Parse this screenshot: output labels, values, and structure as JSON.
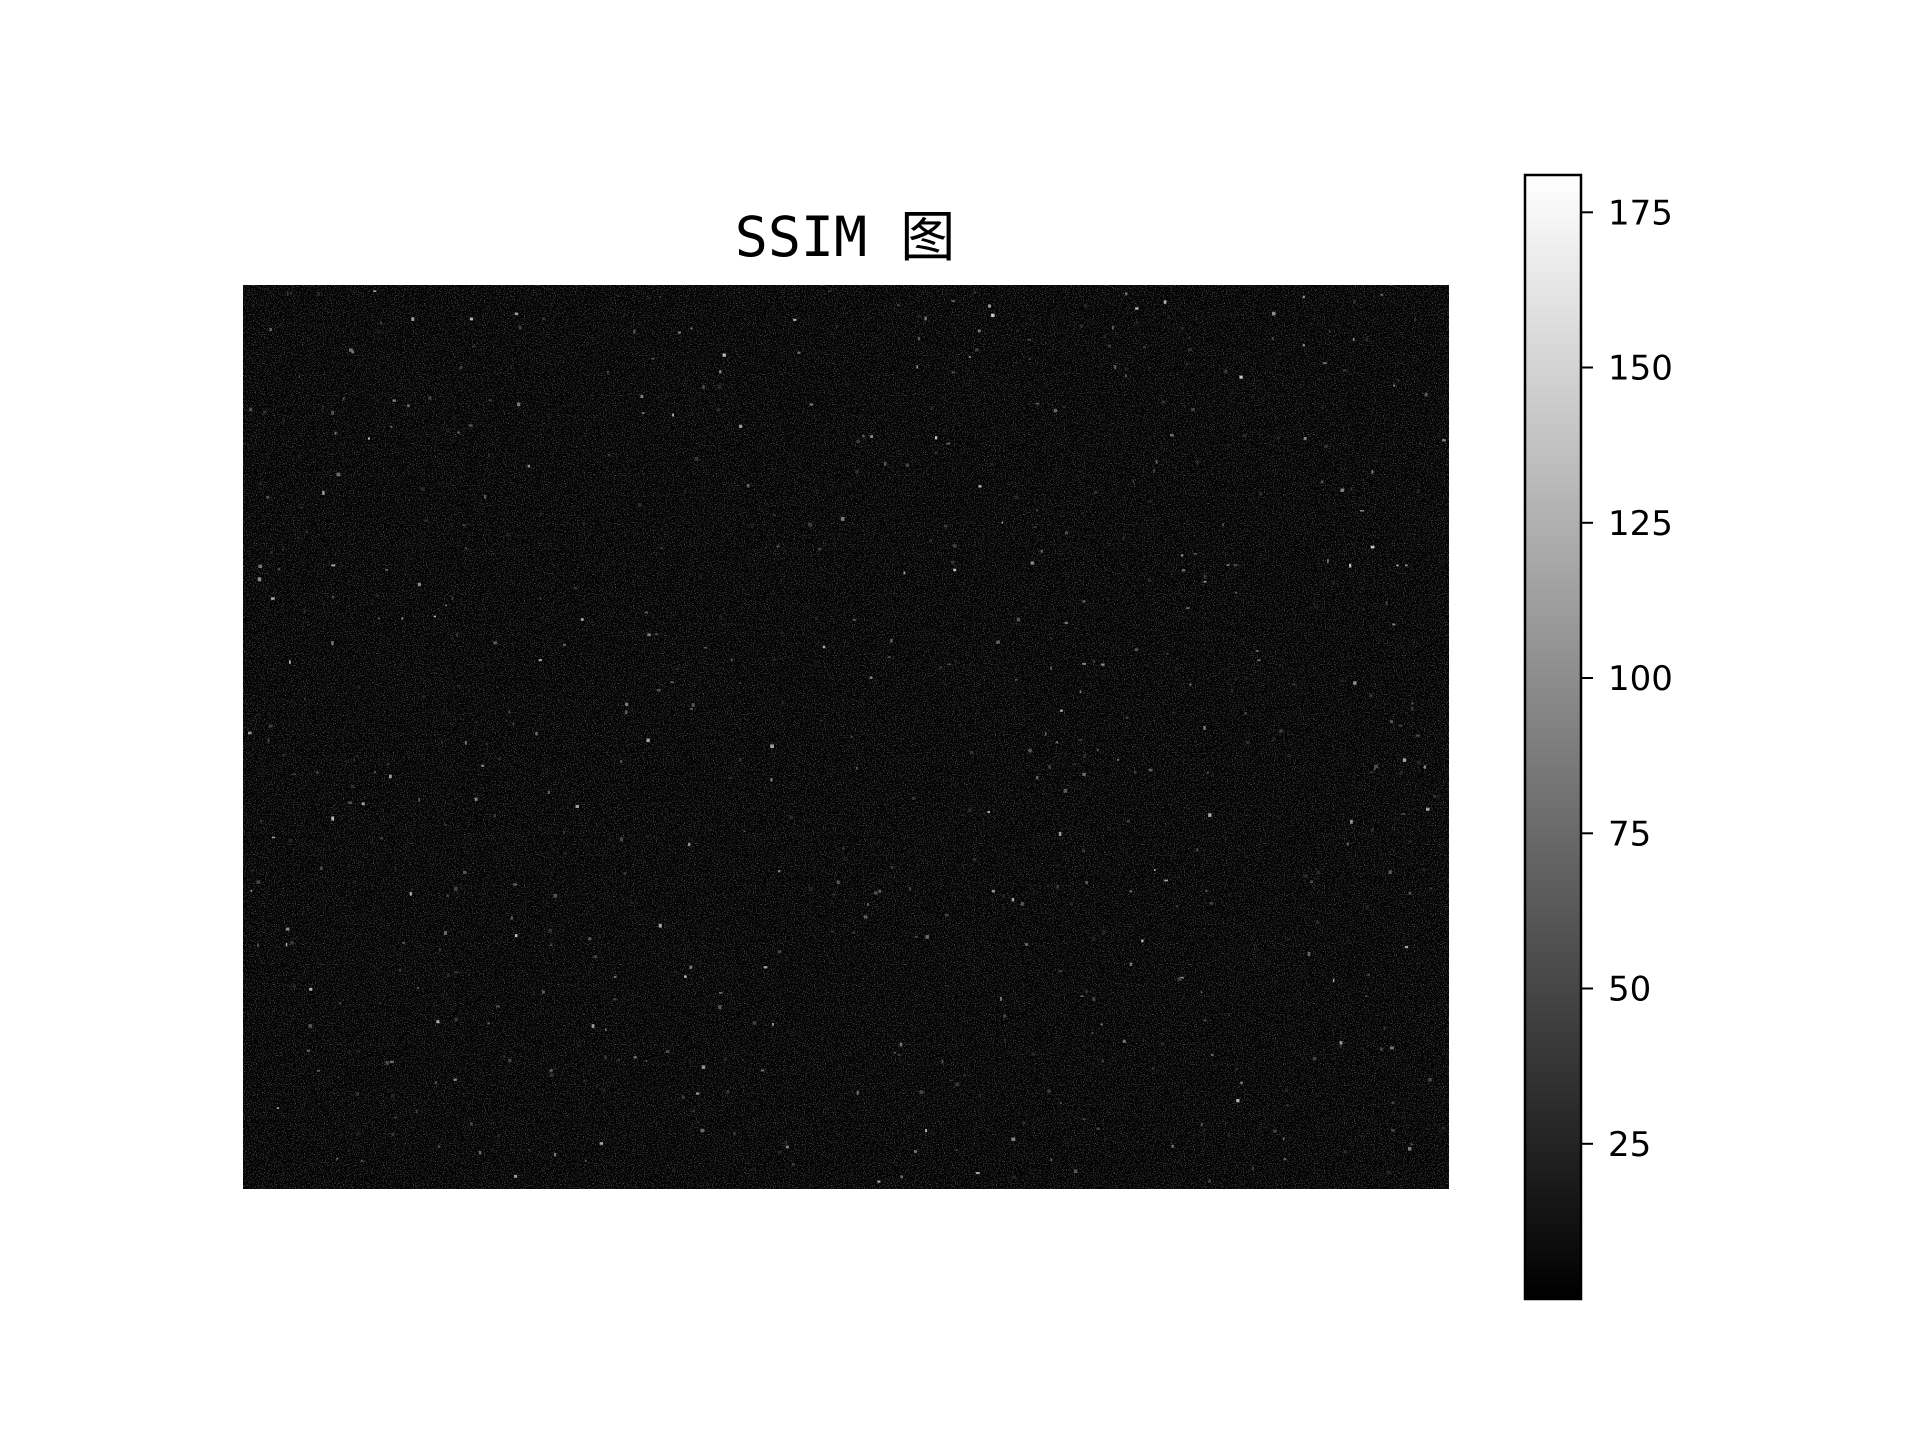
{
  "chart_data": {
    "type": "heatmap",
    "title": "SSIM 图",
    "colormap": "gray",
    "background_value": 2,
    "colorbar": {
      "vmin": 0,
      "vmax": 181,
      "ticks": [
        25,
        50,
        75,
        100,
        125,
        150,
        175
      ]
    },
    "colors": {
      "background": "#ffffff",
      "axes_frame": "#000000",
      "text": "#000000"
    }
  }
}
